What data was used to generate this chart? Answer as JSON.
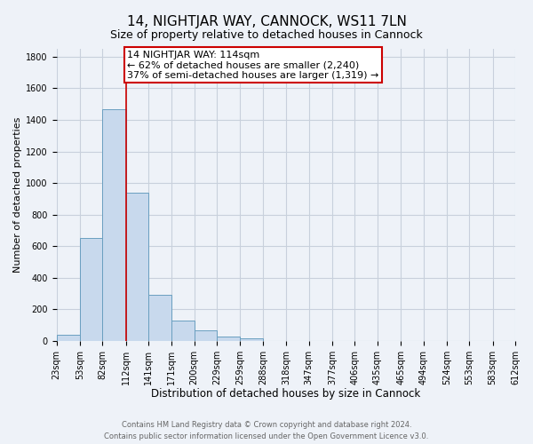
{
  "title1": "14, NIGHTJAR WAY, CANNOCK, WS11 7LN",
  "title2": "Size of property relative to detached houses in Cannock",
  "xlabel": "Distribution of detached houses by size in Cannock",
  "ylabel": "Number of detached properties",
  "bar_values": [
    40,
    650,
    1470,
    940,
    290,
    130,
    65,
    25,
    15,
    0,
    0,
    0,
    0,
    0,
    0,
    0,
    0,
    0,
    0,
    0
  ],
  "bin_edges": [
    23,
    53,
    82,
    112,
    141,
    171,
    200,
    229,
    259,
    288,
    318,
    347,
    377,
    406,
    435,
    465,
    494,
    524,
    553,
    583,
    612
  ],
  "tick_labels": [
    "23sqm",
    "53sqm",
    "82sqm",
    "112sqm",
    "141sqm",
    "171sqm",
    "200sqm",
    "229sqm",
    "259sqm",
    "288sqm",
    "318sqm",
    "347sqm",
    "377sqm",
    "406sqm",
    "435sqm",
    "465sqm",
    "494sqm",
    "524sqm",
    "553sqm",
    "583sqm",
    "612sqm"
  ],
  "bar_color": "#c8d9ed",
  "bar_edge_color": "#6a9fc0",
  "vline_x": 112,
  "vline_color": "#cc0000",
  "annotation_line1": "14 NIGHTJAR WAY: 114sqm",
  "annotation_line2": "← 62% of detached houses are smaller (2,240)",
  "annotation_line3": "37% of semi-detached houses are larger (1,319) →",
  "annotation_box_color": "#cc0000",
  "annotation_text_fontsize": 8,
  "ylim": [
    0,
    1850
  ],
  "yticks": [
    0,
    200,
    400,
    600,
    800,
    1000,
    1200,
    1400,
    1600,
    1800
  ],
  "grid_color": "#c8d0dc",
  "bg_color": "#eef2f8",
  "footer_text": "Contains HM Land Registry data © Crown copyright and database right 2024.\nContains public sector information licensed under the Open Government Licence v3.0.",
  "title1_fontsize": 11,
  "title2_fontsize": 9,
  "xlabel_fontsize": 8.5,
  "ylabel_fontsize": 8,
  "tick_fontsize": 7
}
